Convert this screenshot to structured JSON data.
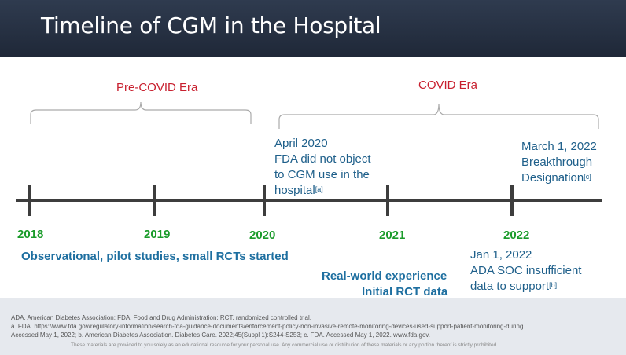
{
  "header": {
    "title": "Timeline of CGM in the Hospital"
  },
  "eras": {
    "pre_covid": "Pre-COVID Era",
    "covid": "COVID Era"
  },
  "years": [
    "2018",
    "2019",
    "2020",
    "2021",
    "2022"
  ],
  "annotations": {
    "observational": "Observational, pilot studies, small RCTs started",
    "real_world_line1": "Real-world experience",
    "real_world_line2": "Initial RCT data"
  },
  "events": {
    "april_2020": {
      "line1": "April 2020",
      "line2": "FDA did not object",
      "line3": "to CGM use in the",
      "line4": "hospital",
      "ref": "[a]"
    },
    "march_2022": {
      "line1": "March 1, 2022",
      "line2": "Breakthrough",
      "line3": "Designation",
      "ref": "[c]"
    },
    "jan_2022": {
      "line1": "Jan 1, 2022",
      "line2": "ADA SOC insufficient",
      "line3": "data to support",
      "ref": "[b]"
    }
  },
  "footnotes": {
    "abbrev": "ADA, American Diabetes Association; FDA, Food and Drug Administration; RCT, randomized controlled trial.",
    "ref_a": "a. FDA. https://www.fda.gov/regulatory-information/search-fda-guidance-documents/enforcement-policy-non-invasive-remote-monitoring-devices-used-support-patient-monitoring-during.",
    "ref_b": "Accessed May 1, 2022; b. American Diabetes Association. Diabetes Care. 2022;45(Suppl 1):S244-S253; c. FDA. Accessed May 1, 2022. www.fda.gov.",
    "disclaimer": "These materials are provided to you solely as an educational resource for your personal use. Any commercial use or distribution of these materials or any portion thereof is strictly prohibited."
  },
  "colors": {
    "header_bg": "#232d3f",
    "era": "#c8202f",
    "year": "#1a9b2a",
    "annotation": "#1e6fa0",
    "axis": "#3d3d3d"
  }
}
